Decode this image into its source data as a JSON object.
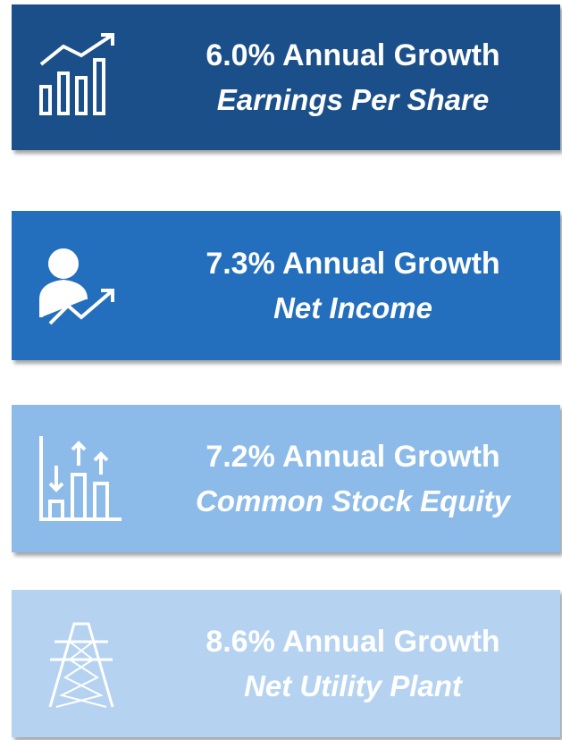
{
  "cards": [
    {
      "headline": "6.0% Annual Growth",
      "subtitle": "Earnings Per Share",
      "color": "#1b4f8a"
    },
    {
      "headline": "7.3% Annual Growth",
      "subtitle": "Net Income",
      "color": "#246fbd"
    },
    {
      "headline": "7.2% Annual Growth",
      "subtitle": "Common Stock Equity",
      "color": "#8dbbe9"
    },
    {
      "headline": "8.6% Annual Growth",
      "subtitle": "Net Utility Plant",
      "color": "#b5d3f1"
    }
  ]
}
